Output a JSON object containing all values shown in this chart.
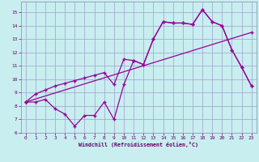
{
  "background_color": "#c8eef0",
  "grid_color": "#a0a0cc",
  "line_color": "#990099",
  "xlabel": "Windchill (Refroidissement éolien,°C)",
  "xlim": [
    -0.5,
    23.5
  ],
  "ylim": [
    6,
    15.8
  ],
  "yticks": [
    6,
    7,
    8,
    9,
    10,
    11,
    12,
    13,
    14,
    15
  ],
  "xticks": [
    0,
    1,
    2,
    3,
    4,
    5,
    6,
    7,
    8,
    9,
    10,
    11,
    12,
    13,
    14,
    15,
    16,
    17,
    18,
    19,
    20,
    21,
    22,
    23
  ],
  "line1_x": [
    0,
    1,
    2,
    3,
    4,
    5,
    6,
    7,
    8,
    9,
    10,
    11,
    12,
    13,
    14,
    15,
    16,
    17,
    18,
    19,
    20,
    21,
    22,
    23
  ],
  "line1_y": [
    8.3,
    8.9,
    9.2,
    9.5,
    9.7,
    9.9,
    10.1,
    10.3,
    10.5,
    9.6,
    11.5,
    11.4,
    11.1,
    13.0,
    14.3,
    14.2,
    14.2,
    14.1,
    15.2,
    14.3,
    14.0,
    12.2,
    10.9,
    9.5
  ],
  "line2_x": [
    0,
    23
  ],
  "line2_y": [
    8.3,
    13.5
  ],
  "line3_x": [
    0,
    1,
    2,
    3,
    4,
    5,
    6,
    7,
    8,
    9,
    10,
    11,
    12,
    13,
    14,
    15,
    16,
    17,
    18,
    19,
    20,
    21,
    22,
    23
  ],
  "line3_y": [
    8.3,
    8.3,
    8.5,
    7.8,
    7.4,
    6.5,
    7.3,
    7.3,
    8.3,
    7.0,
    9.6,
    11.4,
    11.1,
    13.0,
    14.3,
    14.2,
    14.2,
    14.1,
    15.2,
    14.3,
    14.0,
    12.2,
    10.9,
    9.5
  ]
}
